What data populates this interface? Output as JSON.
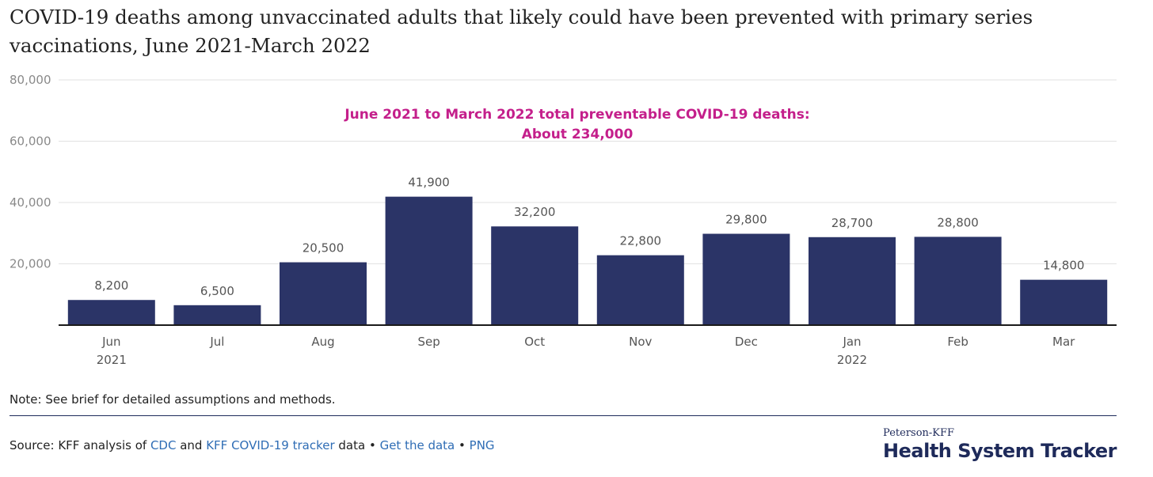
{
  "title": "COVID-19 deaths among unvaccinated adults that likely could have been prevented with primary series vaccinations, June 2021-March 2022",
  "annotation": {
    "line1": "June 2021 to March 2022 total preventable COVID-19 deaths:",
    "line2": "About 234,000"
  },
  "colors": {
    "bar": "#2b3467",
    "annotation": "#c41f8b",
    "grid": "#e2e2e2",
    "axis": "#1a1a1a",
    "link": "#2f6db5"
  },
  "chart_data": {
    "type": "bar",
    "categories": [
      "Jun",
      "Jul",
      "Aug",
      "Sep",
      "Oct",
      "Nov",
      "Dec",
      "Jan",
      "Feb",
      "Mar"
    ],
    "year_labels": [
      "2021",
      "",
      "",
      "",
      "",
      "",
      "",
      "2022",
      "",
      ""
    ],
    "values": [
      8200,
      6500,
      20500,
      41900,
      32200,
      22800,
      29800,
      28700,
      28800,
      14800
    ],
    "value_labels": [
      "8,200",
      "6,500",
      "20,500",
      "41,900",
      "32,200",
      "22,800",
      "29,800",
      "28,700",
      "28,800",
      "14,800"
    ],
    "ylim": [
      0,
      80000
    ],
    "yticks": [
      20000,
      40000,
      60000,
      80000
    ],
    "ytick_labels": [
      "20,000",
      "40,000",
      "60,000",
      "80,000"
    ],
    "grid": true,
    "xlabel": "",
    "ylabel": ""
  },
  "note": "Note: See brief for detailed assumptions and methods.",
  "source": {
    "prefix": "Source: KFF analysis of ",
    "link1": "CDC",
    "and": " and ",
    "link2": "KFF COVID-19 tracker",
    "suffix": " data • ",
    "link3": "Get the data",
    "sep": " • ",
    "link4": "PNG"
  },
  "logo": {
    "line1": "Peterson-KFF",
    "line2": "Health System Tracker"
  }
}
